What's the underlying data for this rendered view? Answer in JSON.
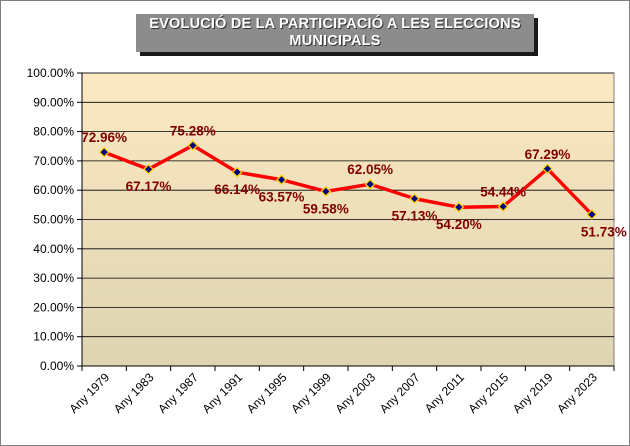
{
  "chart_data": {
    "type": "line",
    "title": "EVOLUCIÓ  DE LA PARTICIPACIÓ  A LES ELECCIONS MUNICIPALS",
    "xlabel": "",
    "ylabel": "",
    "categories": [
      "Any 1979",
      "Any 1983",
      "Any 1987",
      "Any 1991",
      "Any 1995",
      "Any 1999",
      "Any 2003",
      "Any 2007",
      "Any 2011",
      "Any 2015",
      "Any 2019",
      "Any 2023"
    ],
    "series": [
      {
        "values": [
          72.96,
          67.17,
          75.28,
          66.14,
          63.57,
          59.58,
          62.05,
          57.13,
          54.2,
          54.44,
          67.29,
          51.73
        ],
        "labels": [
          "72.96%",
          "67.17%",
          "75.28%",
          "66.14%",
          "63.57%",
          "59.58%",
          "62.05%",
          "57.13%",
          "54.20%",
          "54.44%",
          "67.29%",
          "51.73%"
        ]
      }
    ],
    "ylim": [
      0,
      100
    ],
    "yticks": [
      "0.00%",
      "10.00%",
      "20.00%",
      "30.00%",
      "40.00%",
      "50.00%",
      "60.00%",
      "70.00%",
      "80.00%",
      "90.00%",
      "100.00%"
    ],
    "grid": true,
    "legend": "none",
    "colors": {
      "line": "#ff0000",
      "marker_fill": "#000080",
      "marker_border": "#ffd400",
      "data_label": "#800000",
      "plot_top": "#fce9c3",
      "plot_bottom": "#ddd4b0",
      "gridline": "#000000"
    }
  }
}
